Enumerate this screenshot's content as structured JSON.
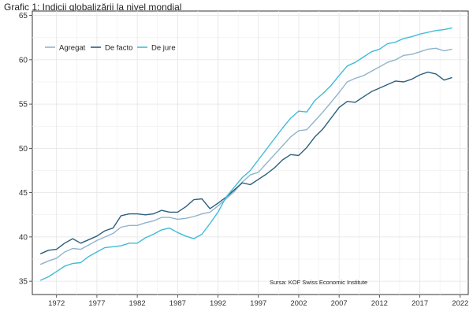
{
  "title": "Grafic 1: Indicii globalizării la nivel mondial",
  "source_note": "Sursa: KOF Swiss Economic Institute",
  "chart_data": {
    "type": "line",
    "title": "Grafic 1: Indicii globalizării la nivel mondial",
    "xlabel": "",
    "ylabel": "",
    "xlim": [
      1969,
      2023
    ],
    "ylim": [
      33.5,
      65.5
    ],
    "x_ticks": [
      1972,
      1977,
      1982,
      1987,
      1992,
      1997,
      2002,
      2007,
      2012,
      2017,
      2022
    ],
    "y_ticks": [
      35,
      40,
      45,
      50,
      55,
      60,
      65
    ],
    "grid": true,
    "legend": "top-left",
    "x": [
      1970,
      1971,
      1972,
      1973,
      1974,
      1975,
      1976,
      1977,
      1978,
      1979,
      1980,
      1981,
      1982,
      1983,
      1984,
      1985,
      1986,
      1987,
      1988,
      1989,
      1990,
      1991,
      1992,
      1993,
      1994,
      1995,
      1996,
      1997,
      1998,
      1999,
      2000,
      2001,
      2002,
      2003,
      2004,
      2005,
      2006,
      2007,
      2008,
      2009,
      2010,
      2011,
      2012,
      2013,
      2014,
      2015,
      2016,
      2017,
      2018,
      2019,
      2020,
      2021
    ],
    "series": [
      {
        "name": "Agregat",
        "color": "#8fb4cc",
        "values": [
          36.9,
          37.3,
          37.6,
          38.3,
          38.7,
          38.6,
          39.1,
          39.6,
          40.0,
          40.4,
          41.1,
          41.3,
          41.3,
          41.6,
          41.8,
          42.2,
          42.2,
          42.0,
          42.1,
          42.3,
          42.6,
          42.8,
          43.5,
          44.3,
          45.1,
          46.2,
          47.0,
          47.3,
          48.3,
          49.3,
          50.3,
          51.3,
          52.0,
          52.1,
          53.1,
          54.1,
          55.2,
          56.3,
          57.5,
          57.9,
          58.2,
          58.7,
          59.2,
          59.7,
          60.0,
          60.5,
          60.6,
          60.9,
          61.2,
          61.3,
          61.0,
          61.2
        ]
      },
      {
        "name": "De facto",
        "color": "#2b5f7e",
        "values": [
          38.1,
          38.5,
          38.6,
          39.3,
          39.8,
          39.3,
          39.7,
          40.1,
          40.7,
          41.0,
          42.4,
          42.6,
          42.6,
          42.5,
          42.6,
          43.0,
          42.8,
          42.8,
          43.4,
          44.2,
          44.3,
          43.2,
          43.8,
          44.5,
          45.3,
          46.1,
          45.9,
          46.5,
          47.1,
          47.8,
          48.7,
          49.3,
          49.2,
          50.1,
          51.3,
          52.2,
          53.4,
          54.6,
          55.3,
          55.2,
          55.8,
          56.4,
          56.8,
          57.2,
          57.6,
          57.5,
          57.8,
          58.3,
          58.6,
          58.4,
          57.7,
          58.0
        ]
      },
      {
        "name": "De jure",
        "color": "#3fbcd8",
        "values": [
          35.1,
          35.5,
          36.1,
          36.7,
          37.0,
          37.1,
          37.8,
          38.3,
          38.8,
          38.9,
          39.0,
          39.3,
          39.3,
          39.9,
          40.3,
          40.8,
          41.0,
          40.5,
          40.1,
          39.8,
          40.3,
          41.5,
          42.8,
          44.5,
          45.6,
          46.7,
          47.5,
          48.7,
          49.9,
          51.1,
          52.3,
          53.4,
          54.2,
          54.1,
          55.4,
          56.2,
          57.1,
          58.2,
          59.3,
          59.7,
          60.3,
          60.9,
          61.2,
          61.8,
          62.0,
          62.4,
          62.6,
          62.9,
          63.1,
          63.3,
          63.4,
          63.6
        ]
      }
    ]
  }
}
